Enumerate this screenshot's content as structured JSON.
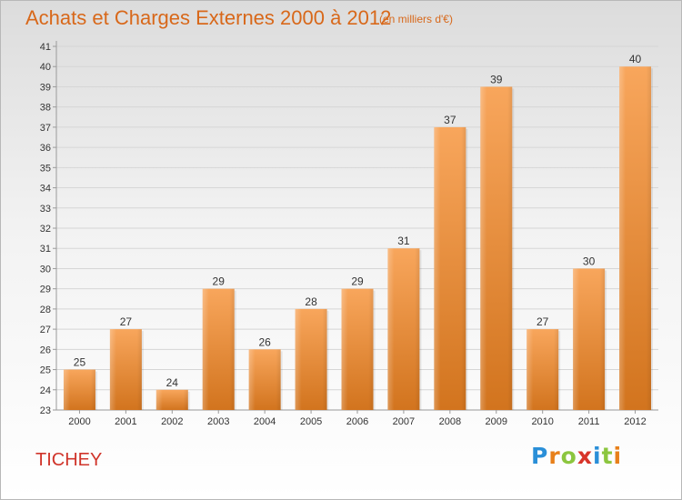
{
  "title": "Achats et Charges Externes 2000 à 2012",
  "subtitle": "(en milliers d'€)",
  "location": "TICHEY",
  "logo": {
    "letters": [
      "P",
      "r",
      "o",
      "x",
      "i",
      "t",
      "i"
    ],
    "colors": [
      "#2a8fd8",
      "#e8801a",
      "#8cc63f",
      "#d8342a",
      "#2a8fd8",
      "#8cc63f",
      "#e8801a"
    ]
  },
  "colors": {
    "title": "#d8681a",
    "location": "#d0342a",
    "bar_light": "#f8a65c",
    "bar_dark": "#d2741e"
  },
  "chart_data": {
    "type": "bar",
    "categories": [
      "2000",
      "2001",
      "2002",
      "2003",
      "2004",
      "2005",
      "2006",
      "2007",
      "2008",
      "2009",
      "2010",
      "2011",
      "2012"
    ],
    "values": [
      25,
      27,
      24,
      29,
      26,
      28,
      29,
      31,
      37,
      39,
      27,
      30,
      40
    ],
    "ylim": [
      23,
      41
    ],
    "yticks": [
      23,
      24,
      25,
      26,
      27,
      28,
      29,
      30,
      31,
      32,
      33,
      34,
      35,
      36,
      37,
      38,
      39,
      40,
      41
    ],
    "grid": true,
    "legend": "none"
  }
}
